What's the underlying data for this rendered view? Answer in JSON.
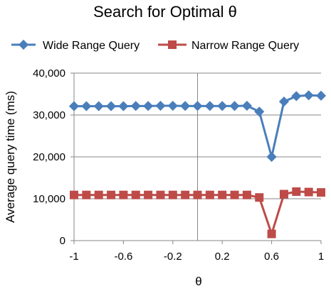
{
  "chart_data": {
    "type": "line",
    "title": "Search for Optimal θ",
    "xlabel": "θ",
    "ylabel": "Average query time (ms)",
    "xlim": [
      -1,
      1
    ],
    "ylim": [
      0,
      40000
    ],
    "x_ticks": [
      "-1",
      "-0.6",
      "-0.2",
      "0.2",
      "0.6",
      "1"
    ],
    "x_tick_values": [
      -1,
      -0.6,
      -0.2,
      0.2,
      0.6,
      1
    ],
    "y_ticks": [
      "0",
      "10,000",
      "20,000",
      "30,000",
      "40,000"
    ],
    "y_tick_values": [
      0,
      10000,
      20000,
      30000,
      40000
    ],
    "grid": "horizontal",
    "legend_position": "top",
    "x": [
      -1,
      -0.9,
      -0.8,
      -0.7,
      -0.6,
      -0.5,
      -0.4,
      -0.3,
      -0.2,
      -0.1,
      0,
      0.1,
      0.2,
      0.3,
      0.4,
      0.5,
      0.6,
      0.7,
      0.8,
      0.9,
      1
    ],
    "series": [
      {
        "name": "Wide Range Query",
        "color": "#4A7EBB",
        "marker": "diamond",
        "values": [
          32100,
          32100,
          32100,
          32100,
          32100,
          32150,
          32150,
          32200,
          32200,
          32150,
          32150,
          32150,
          32150,
          32150,
          32200,
          30800,
          20000,
          33200,
          34500,
          34700,
          34600
        ]
      },
      {
        "name": "Narrow Range Query",
        "color": "#BE4B48",
        "marker": "square",
        "values": [
          10900,
          10900,
          10900,
          10900,
          10900,
          10900,
          10900,
          10900,
          10900,
          10900,
          10900,
          10900,
          10900,
          10900,
          10900,
          10300,
          1600,
          11100,
          11700,
          11600,
          11500
        ]
      }
    ]
  }
}
